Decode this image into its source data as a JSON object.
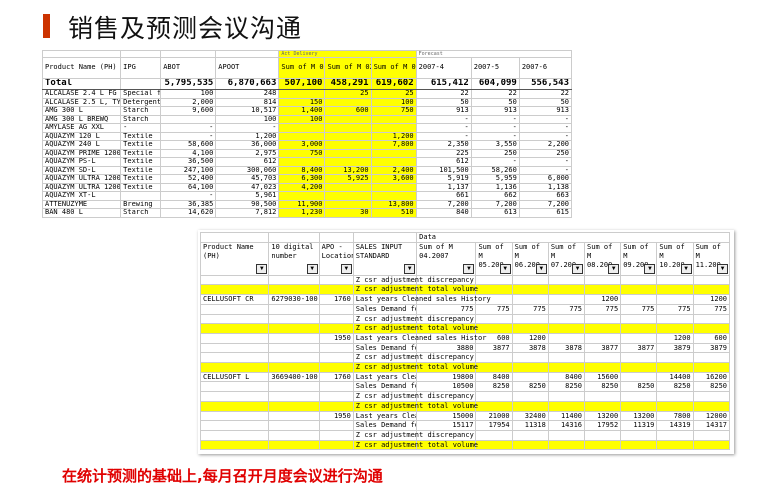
{
  "slide": {
    "title": "销售及预测会议沟通",
    "footer": "在统计预测的基础上,每月召开月度会议进行沟通",
    "accent": "#cc3300",
    "footer_color": "#e00000",
    "highlight": "#ffff00"
  },
  "table1": {
    "group_labels": {
      "actual": "Act Delivery",
      "forecast": "Forecast"
    },
    "headers": [
      "Product Name (PH)",
      "IPG",
      "ABOT",
      "APOOT",
      "Sum of M 01.2007",
      "Sum of M 02.2007",
      "Sum of M 03.2007",
      "2007-4",
      "2007-5",
      "2007-6"
    ],
    "total": [
      "Total",
      "",
      "5,795,535",
      "6,870,663",
      "507,100",
      "458,291",
      "619,602",
      "615,412",
      "604,099",
      "556,543"
    ],
    "rows": [
      [
        "ALCALASE 2.4 L FG",
        "Special fc",
        "100",
        "248",
        "",
        "25",
        "25",
        "22",
        "22",
        "22"
      ],
      [
        "ALCALASE 2.5 L, TYPE",
        "Detergent",
        "2,000",
        "814",
        "150",
        "",
        "100",
        "50",
        "50",
        "50"
      ],
      [
        "AMG 300 L",
        "Starch",
        "9,600",
        "10,517",
        "1,400",
        "600",
        "750",
        "913",
        "913",
        "913"
      ],
      [
        "AMG 300 L BREWQ",
        "Starch",
        "",
        "100",
        "100",
        "",
        "",
        "-",
        "-",
        "-"
      ],
      [
        "AMYLASE AG XXL",
        "-",
        "-",
        "-",
        "",
        "",
        "",
        "-",
        "-",
        "-"
      ],
      [
        "AQUAZYM 120 L",
        "Textile",
        "-",
        "1,200",
        "",
        "",
        "1,200",
        "-",
        "-",
        "-"
      ],
      [
        "AQUAZYM 240 L",
        "Textile",
        "58,600",
        "36,000",
        "3,000",
        "",
        "7,800",
        "2,350",
        "3,550",
        "2,200"
      ],
      [
        "AQUAZYM PRIME 12000",
        "Textile",
        "4,100",
        "2,975",
        "750",
        "",
        "",
        "225",
        "250",
        "250"
      ],
      [
        "AQUAZYM PS-L",
        "Textile",
        "36,500",
        "612",
        "",
        "",
        "",
        "612",
        "-",
        "-"
      ],
      [
        "AQUAZYM SD-L",
        "Textile",
        "247,100",
        "300,060",
        "8,400",
        "13,200",
        "2,400",
        "101,500",
        "58,260",
        "-"
      ],
      [
        "AQUAZYM ULTRA 1200 L",
        "Textile",
        "52,400",
        "45,703",
        "6,300",
        "5,925",
        "3,600",
        "5,919",
        "5,959",
        "6,000"
      ],
      [
        "AQUAZYM ULTRA 1200 N",
        "Textile",
        "64,100",
        "47,023",
        "4,200",
        "",
        "",
        "1,137",
        "1,136",
        "1,138"
      ],
      [
        "AQUAZYM XT-L",
        "",
        "-",
        "5,961",
        "",
        "",
        "",
        "661",
        "662",
        "663"
      ],
      [
        "ATTENUZYME",
        "Brewing",
        "36,385",
        "90,500",
        "11,900",
        "",
        "13,800",
        "7,200",
        "7,200",
        "7,200"
      ],
      [
        "BAN 480 L",
        "Starch",
        "14,620",
        "7,812",
        "1,230",
        "30",
        "510",
        "840",
        "613",
        "615"
      ]
    ]
  },
  "table2": {
    "data_label": "Data",
    "headers": [
      "Product Name (PH)",
      "10 digital number",
      "APO - Location",
      "SALES INPUT STANDARD",
      "Sum of M 04.2007",
      "Sum of M 05.200",
      "Sum of M 06.200",
      "Sum of M 07.200",
      "Sum of M 08.200",
      "Sum of M 09.200",
      "Sum of M 10.200",
      "Sum of M 11.200"
    ],
    "rows": [
      {
        "hl": false,
        "c": [
          "",
          "",
          "",
          "Z csr adjustment discrepancy",
          "",
          "",
          "",
          "",
          "",
          "",
          "",
          ""
        ]
      },
      {
        "hl": true,
        "c": [
          "",
          "",
          "",
          "Z csr adjustment total volume",
          "",
          "",
          "",
          "",
          "",
          "",
          "",
          ""
        ]
      },
      {
        "hl": false,
        "c": [
          "CELLUSOFT CR",
          "6279030-100",
          "1760",
          "Last years Cleaned sales History",
          "",
          "",
          "",
          "",
          "1200",
          "",
          "",
          "1200"
        ]
      },
      {
        "hl": false,
        "c": [
          "",
          "",
          "",
          "Sales Demand fo",
          "775",
          "775",
          "775",
          "775",
          "775",
          "775",
          "775",
          "775"
        ]
      },
      {
        "hl": false,
        "c": [
          "",
          "",
          "",
          "Z csr adjustment discrepancy",
          "",
          "",
          "",
          "",
          "",
          "",
          "",
          ""
        ]
      },
      {
        "hl": true,
        "c": [
          "",
          "",
          "",
          "Z csr adjustment total volume",
          "",
          "",
          "",
          "",
          "",
          "",
          "",
          ""
        ]
      },
      {
        "hl": false,
        "c": [
          "",
          "",
          "1950",
          "Last years Cleaned sales Histor",
          "",
          "600",
          "1200",
          "",
          "",
          "",
          "1200",
          "600"
        ]
      },
      {
        "hl": false,
        "c": [
          "",
          "",
          "",
          "Sales Demand fo",
          "3880",
          "3877",
          "3878",
          "3878",
          "3877",
          "3877",
          "3879",
          "3879"
        ]
      },
      {
        "hl": false,
        "c": [
          "",
          "",
          "",
          "Z csr adjustment discrepancy",
          "",
          "",
          "",
          "",
          "",
          "",
          "",
          ""
        ]
      },
      {
        "hl": true,
        "c": [
          "",
          "",
          "",
          "Z csr adjustment total volume",
          "",
          "",
          "",
          "",
          "",
          "",
          "",
          ""
        ]
      },
      {
        "hl": false,
        "c": [
          "CELLUSOFT L",
          "3669400-100",
          "1760",
          "Last years Clea",
          "19800",
          "8400",
          "",
          "8400",
          "15600",
          "",
          "14400",
          "16200"
        ]
      },
      {
        "hl": false,
        "c": [
          "",
          "",
          "",
          "Sales Demand fo",
          "10500",
          "8250",
          "8250",
          "8250",
          "8250",
          "8250",
          "8250",
          "8250"
        ]
      },
      {
        "hl": false,
        "c": [
          "",
          "",
          "",
          "Z csr adjustment discrepancy",
          "",
          "",
          "",
          "",
          "",
          "",
          "",
          ""
        ]
      },
      {
        "hl": true,
        "c": [
          "",
          "",
          "",
          "Z csr adjustment total volume",
          "",
          "",
          "",
          "",
          "",
          "",
          "",
          ""
        ]
      },
      {
        "hl": false,
        "c": [
          "",
          "",
          "1950",
          "Last years Clea",
          "15000",
          "21000",
          "32400",
          "11400",
          "13200",
          "13200",
          "7800",
          "12000"
        ]
      },
      {
        "hl": false,
        "c": [
          "",
          "",
          "",
          "Sales Demand fo",
          "15117",
          "17954",
          "11318",
          "14316",
          "17952",
          "11319",
          "14319",
          "14317"
        ]
      },
      {
        "hl": false,
        "c": [
          "",
          "",
          "",
          "Z csr adjustment discrepancy",
          "",
          "",
          "",
          "",
          "",
          "",
          "",
          ""
        ]
      },
      {
        "hl": true,
        "c": [
          "",
          "",
          "",
          "Z csr adjustment total volume",
          "",
          "",
          "",
          "",
          "",
          "",
          "",
          ""
        ]
      }
    ]
  }
}
